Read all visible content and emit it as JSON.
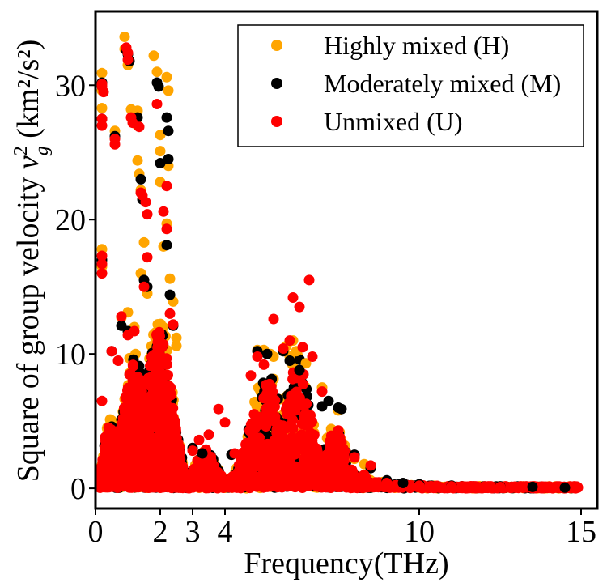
{
  "chart_data": {
    "type": "scatter",
    "xlabel": "Frequency(THz)",
    "ylabel": "Square of group velocity",
    "ylabel_symbol": "v",
    "ylabel_subscript": "g",
    "ylabel_superscript": "2",
    "ylabel_units": "(km²/s²)",
    "xlim": [
      0,
      15.5
    ],
    "ylim": [
      -1.5,
      35.5
    ],
    "x_ticks": [
      0,
      2,
      3,
      4,
      10,
      15
    ],
    "y_ticks": [
      0,
      10,
      20,
      30
    ],
    "grid": false,
    "legend_position": "top-right",
    "series": [
      {
        "name": "Highly mixed (H)",
        "color": "#FFA500",
        "points": [
          [
            0.2,
            30.9
          ],
          [
            0.2,
            29.6
          ],
          [
            0.2,
            28.3
          ],
          [
            0.2,
            17.8
          ],
          [
            0.2,
            16.5
          ],
          [
            0.6,
            26.6
          ],
          [
            0.9,
            33.6
          ],
          [
            0.9,
            32.7
          ],
          [
            1.0,
            31.5
          ],
          [
            1.1,
            28.2
          ],
          [
            1.3,
            28.1
          ],
          [
            1.3,
            27.0
          ],
          [
            1.3,
            24.4
          ],
          [
            1.35,
            23.4
          ],
          [
            1.4,
            22.2
          ],
          [
            1.5,
            18.3
          ],
          [
            1.4,
            16.0
          ],
          [
            1.6,
            14.5
          ],
          [
            1.8,
            32.2
          ],
          [
            1.9,
            31.0
          ],
          [
            2.0,
            26.3
          ],
          [
            2.0,
            25.1
          ],
          [
            2.0,
            22.8
          ],
          [
            2.2,
            30.6
          ],
          [
            2.25,
            29.6
          ],
          [
            2.25,
            24.0
          ],
          [
            2.2,
            19.7
          ],
          [
            2.1,
            18.0
          ],
          [
            2.3,
            15.6
          ],
          [
            2.4,
            13.9
          ],
          [
            2.5,
            11.2
          ],
          [
            2.5,
            10.6
          ],
          [
            1.0,
            13.1
          ],
          [
            1.2,
            12.0
          ],
          [
            0.8,
            12.7
          ],
          [
            5.0,
            10.3
          ],
          [
            5.2,
            10.3
          ],
          [
            5.5,
            9.8
          ],
          [
            6.0,
            9.8
          ],
          [
            6.2,
            10.2
          ],
          [
            6.5,
            9.3
          ],
          [
            7.5,
            5.8
          ],
          [
            7.0,
            7.5
          ],
          [
            8.0,
            2.2
          ],
          [
            8.3,
            1.8
          ],
          [
            5.9,
            10.6
          ],
          [
            6.1,
            11.0
          ],
          [
            5.4,
            10.0
          ]
        ]
      },
      {
        "name": "Moderately mixed (M)",
        "color": "#000000",
        "points": [
          [
            0.2,
            30.2
          ],
          [
            0.2,
            27.5
          ],
          [
            0.2,
            17.0
          ],
          [
            0.6,
            26.2
          ],
          [
            0.95,
            32.6
          ],
          [
            1.0,
            32.3
          ],
          [
            1.05,
            31.8
          ],
          [
            1.3,
            27.6
          ],
          [
            1.4,
            23.0
          ],
          [
            1.45,
            21.5
          ],
          [
            1.5,
            15.5
          ],
          [
            1.6,
            15.0
          ],
          [
            1.9,
            30.2
          ],
          [
            1.95,
            29.9
          ],
          [
            2.0,
            24.2
          ],
          [
            2.2,
            27.6
          ],
          [
            2.25,
            26.6
          ],
          [
            2.25,
            24.5
          ],
          [
            2.2,
            18.1
          ],
          [
            2.3,
            14.4
          ],
          [
            2.4,
            12.1
          ],
          [
            0.8,
            12.1
          ],
          [
            1.0,
            11.7
          ],
          [
            0.5,
            10.2
          ],
          [
            3.0,
            3.0
          ],
          [
            3.3,
            2.6
          ],
          [
            4.2,
            2.5
          ],
          [
            5.0,
            10.2
          ],
          [
            5.3,
            10.0
          ],
          [
            5.8,
            10.2
          ],
          [
            6.0,
            9.5
          ],
          [
            6.3,
            8.8
          ],
          [
            7.0,
            6.1
          ],
          [
            7.2,
            6.5
          ],
          [
            7.5,
            6.0
          ],
          [
            7.6,
            5.9
          ],
          [
            8.0,
            2.5
          ],
          [
            8.5,
            1.5
          ],
          [
            9.0,
            0.6
          ],
          [
            9.5,
            0.4
          ],
          [
            10.0,
            0.3
          ],
          [
            11.0,
            0.2
          ],
          [
            12.5,
            0.15
          ],
          [
            13.5,
            0.1
          ],
          [
            14.5,
            0.05
          ]
        ]
      },
      {
        "name": "Unmixed (U)",
        "color": "#FF0000",
        "points": [
          [
            0.2,
            30.1
          ],
          [
            0.2,
            29.9
          ],
          [
            0.25,
            29.5
          ],
          [
            0.2,
            27.5
          ],
          [
            0.2,
            27.0
          ],
          [
            0.2,
            17.3
          ],
          [
            0.2,
            16.7
          ],
          [
            0.2,
            16.0
          ],
          [
            0.2,
            6.5
          ],
          [
            0.3,
            3.8
          ],
          [
            0.6,
            26.0
          ],
          [
            0.6,
            25.6
          ],
          [
            0.5,
            10.2
          ],
          [
            0.7,
            9.5
          ],
          [
            0.95,
            32.8
          ],
          [
            1.0,
            32.4
          ],
          [
            1.0,
            31.9
          ],
          [
            1.1,
            27.6
          ],
          [
            1.15,
            27.2
          ],
          [
            1.35,
            26.9
          ],
          [
            1.4,
            22.0
          ],
          [
            1.45,
            21.8
          ],
          [
            1.55,
            21.3
          ],
          [
            1.6,
            20.4
          ],
          [
            1.6,
            17.2
          ],
          [
            1.5,
            15.0
          ],
          [
            1.9,
            28.6
          ],
          [
            2.1,
            20.6
          ],
          [
            2.2,
            19.3
          ],
          [
            2.2,
            22.5
          ],
          [
            2.3,
            13.0
          ],
          [
            2.4,
            12.2
          ],
          [
            0.8,
            12.8
          ],
          [
            1.0,
            11.4
          ],
          [
            1.2,
            11.7
          ],
          [
            3.0,
            2.8
          ],
          [
            3.2,
            3.6
          ],
          [
            3.5,
            4.0
          ],
          [
            3.8,
            5.9
          ],
          [
            4.0,
            4.9
          ],
          [
            4.3,
            2.6
          ],
          [
            4.8,
            8.4
          ],
          [
            5.0,
            9.8
          ],
          [
            5.2,
            9.2
          ],
          [
            5.5,
            12.6
          ],
          [
            5.8,
            10.4
          ],
          [
            6.0,
            11.0
          ],
          [
            6.1,
            14.2
          ],
          [
            6.3,
            13.5
          ],
          [
            6.6,
            15.5
          ],
          [
            6.4,
            10.5
          ],
          [
            6.7,
            9.8
          ],
          [
            7.0,
            7.2
          ],
          [
            7.5,
            4.3
          ],
          [
            7.6,
            3.4
          ],
          [
            8.0,
            2.3
          ],
          [
            8.3,
            1.0
          ],
          [
            8.5,
            1.7
          ],
          [
            9.0,
            0.4
          ],
          [
            10.0,
            0.2
          ],
          [
            11.0,
            0.15
          ],
          [
            12.5,
            0.1
          ],
          [
            14.0,
            0.05
          ],
          [
            14.9,
            0.05
          ]
        ]
      }
    ]
  }
}
